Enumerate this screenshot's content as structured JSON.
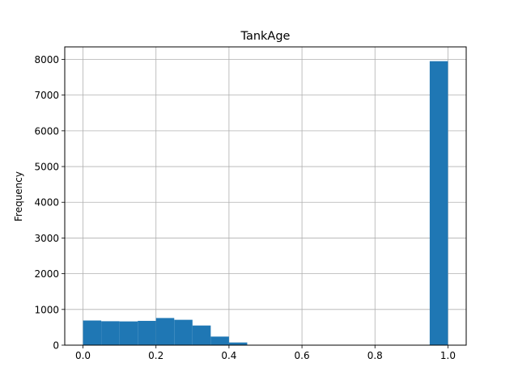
{
  "chart_data": {
    "type": "bar",
    "subtype": "histogram",
    "title": "TankAge",
    "xlabel": "",
    "ylabel": "Frequency",
    "xlim": [
      -0.05,
      1.05
    ],
    "ylim": [
      0,
      8350
    ],
    "xticks": [
      0.0,
      0.2,
      0.4,
      0.6,
      0.8,
      1.0
    ],
    "xtick_labels": [
      "0.0",
      "0.2",
      "0.4",
      "0.6",
      "0.8",
      "1.0"
    ],
    "yticks": [
      0,
      1000,
      2000,
      3000,
      4000,
      5000,
      6000,
      7000,
      8000
    ],
    "ytick_labels": [
      "0",
      "1000",
      "2000",
      "3000",
      "4000",
      "5000",
      "6000",
      "7000",
      "8000"
    ],
    "grid": true,
    "bar_color": "#1f77b4",
    "bins": [
      {
        "x0": 0.0,
        "x1": 0.05,
        "count": 690
      },
      {
        "x0": 0.05,
        "x1": 0.1,
        "count": 670
      },
      {
        "x0": 0.1,
        "x1": 0.15,
        "count": 665
      },
      {
        "x0": 0.15,
        "x1": 0.2,
        "count": 680
      },
      {
        "x0": 0.2,
        "x1": 0.25,
        "count": 760
      },
      {
        "x0": 0.25,
        "x1": 0.3,
        "count": 710
      },
      {
        "x0": 0.3,
        "x1": 0.35,
        "count": 550
      },
      {
        "x0": 0.35,
        "x1": 0.4,
        "count": 240
      },
      {
        "x0": 0.4,
        "x1": 0.45,
        "count": 75
      },
      {
        "x0": 0.45,
        "x1": 0.5,
        "count": 0
      },
      {
        "x0": 0.5,
        "x1": 0.55,
        "count": 0
      },
      {
        "x0": 0.55,
        "x1": 0.6,
        "count": 0
      },
      {
        "x0": 0.6,
        "x1": 0.65,
        "count": 0
      },
      {
        "x0": 0.65,
        "x1": 0.7,
        "count": 0
      },
      {
        "x0": 0.7,
        "x1": 0.75,
        "count": 0
      },
      {
        "x0": 0.75,
        "x1": 0.8,
        "count": 0
      },
      {
        "x0": 0.8,
        "x1": 0.85,
        "count": 0
      },
      {
        "x0": 0.85,
        "x1": 0.9,
        "count": 0
      },
      {
        "x0": 0.9,
        "x1": 0.95,
        "count": 0
      },
      {
        "x0": 0.95,
        "x1": 1.0,
        "count": 7950
      }
    ]
  }
}
